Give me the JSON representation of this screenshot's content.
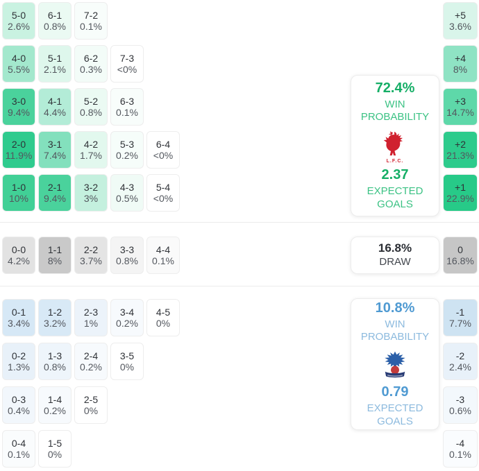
{
  "chart_data": {
    "type": "heatmap",
    "panels": {
      "home": {
        "win_pct": "72.4%",
        "win_label": "WIN PROBABILITY",
        "xg": "2.37",
        "xg_label": "EXPECTED GOALS",
        "crest_icon": "liverpool-crest",
        "crest_caption": "L.F.C."
      },
      "draw": {
        "pct": "16.8%",
        "label": "DRAW"
      },
      "away": {
        "win_pct": "10.8%",
        "win_label": "WIN PROBABILITY",
        "xg": "0.79",
        "xg_label": "EXPECTED GOALS",
        "crest_icon": "crystal-palace-crest"
      }
    },
    "grid": {
      "home_rows": [
        [
          {
            "score": "5-0",
            "pct": "2.6%",
            "bg": "#c9f2e1"
          },
          {
            "score": "6-1",
            "pct": "0.8%",
            "bg": "#ebfaf3"
          },
          {
            "score": "7-2",
            "pct": "0.1%",
            "bg": "#f8fdfb"
          }
        ],
        [
          {
            "score": "4-0",
            "pct": "5.5%",
            "bg": "#a3e8cd"
          },
          {
            "score": "5-1",
            "pct": "2.1%",
            "bg": "#def7ec"
          },
          {
            "score": "6-2",
            "pct": "0.3%",
            "bg": "#f3fcf8"
          },
          {
            "score": "7-3",
            "pct": "<0%",
            "bg": "#ffffff"
          }
        ],
        [
          {
            "score": "3-0",
            "pct": "9.4%",
            "bg": "#4ad29c"
          },
          {
            "score": "4-1",
            "pct": "4.4%",
            "bg": "#b3ecd7"
          },
          {
            "score": "5-2",
            "pct": "0.8%",
            "bg": "#ebfaf3"
          },
          {
            "score": "6-3",
            "pct": "0.1%",
            "bg": "#f8fdfb"
          }
        ],
        [
          {
            "score": "2-0",
            "pct": "11.9%",
            "bg": "#2fcb8e"
          },
          {
            "score": "3-1",
            "pct": "7.4%",
            "bg": "#83e0bd"
          },
          {
            "score": "4-2",
            "pct": "1.7%",
            "bg": "#e2f8ee"
          },
          {
            "score": "5-3",
            "pct": "0.2%",
            "bg": "#f6fdfa"
          },
          {
            "score": "6-4",
            "pct": "<0%",
            "bg": "#ffffff"
          }
        ],
        [
          {
            "score": "1-0",
            "pct": "10%",
            "bg": "#41d096"
          },
          {
            "score": "2-1",
            "pct": "9.4%",
            "bg": "#4ad29c"
          },
          {
            "score": "3-2",
            "pct": "3%",
            "bg": "#c4f0de"
          },
          {
            "score": "4-3",
            "pct": "0.5%",
            "bg": "#f0fbf6"
          },
          {
            "score": "5-4",
            "pct": "<0%",
            "bg": "#ffffff"
          }
        ]
      ],
      "draw_row": [
        {
          "score": "0-0",
          "pct": "4.2%",
          "bg": "#e2e2e2"
        },
        {
          "score": "1-1",
          "pct": "8%",
          "bg": "#c9c9c9"
        },
        {
          "score": "2-2",
          "pct": "3.7%",
          "bg": "#e4e4e4"
        },
        {
          "score": "3-3",
          "pct": "0.8%",
          "bg": "#f4f4f4"
        },
        {
          "score": "4-4",
          "pct": "0.1%",
          "bg": "#fafafa"
        }
      ],
      "away_rows": [
        [
          {
            "score": "0-1",
            "pct": "3.4%",
            "bg": "#d6e8f6"
          },
          {
            "score": "1-2",
            "pct": "3.2%",
            "bg": "#d8e9f6"
          },
          {
            "score": "2-3",
            "pct": "1%",
            "bg": "#ecf3fa"
          },
          {
            "score": "3-4",
            "pct": "0.2%",
            "bg": "#f7fafd"
          },
          {
            "score": "4-5",
            "pct": "0%",
            "bg": "#ffffff"
          }
        ],
        [
          {
            "score": "0-2",
            "pct": "1.3%",
            "bg": "#e8f1f9"
          },
          {
            "score": "1-3",
            "pct": "0.8%",
            "bg": "#eef5fb"
          },
          {
            "score": "2-4",
            "pct": "0.2%",
            "bg": "#f7fafd"
          },
          {
            "score": "3-5",
            "pct": "0%",
            "bg": "#ffffff"
          }
        ],
        [
          {
            "score": "0-3",
            "pct": "0.4%",
            "bg": "#f2f7fc"
          },
          {
            "score": "1-4",
            "pct": "0.2%",
            "bg": "#f7fafd"
          },
          {
            "score": "2-5",
            "pct": "0%",
            "bg": "#ffffff"
          }
        ],
        [
          {
            "score": "0-4",
            "pct": "0.1%",
            "bg": "#fafcfd"
          },
          {
            "score": "1-5",
            "pct": "0%",
            "bg": "#ffffff"
          }
        ]
      ]
    },
    "margins": {
      "home": [
        {
          "margin": "+5",
          "pct": "3.6%",
          "bg": "#d9f5ea"
        },
        {
          "margin": "+4",
          "pct": "8%",
          "bg": "#8fe3c4"
        },
        {
          "margin": "+3",
          "pct": "14.7%",
          "bg": "#5ed8a9"
        },
        {
          "margin": "+2",
          "pct": "21.3%",
          "bg": "#2dcb8c"
        },
        {
          "margin": "+1",
          "pct": "22.9%",
          "bg": "#27ca88"
        }
      ],
      "draw": {
        "margin": "0",
        "pct": "16.8%",
        "bg": "#c6c6c6"
      },
      "away": [
        {
          "margin": "-1",
          "pct": "7.7%",
          "bg": "#cee3f2"
        },
        {
          "margin": "-2",
          "pct": "2.4%",
          "bg": "#e8f1f9"
        },
        {
          "margin": "-3",
          "pct": "0.6%",
          "bg": "#f3f8fc"
        },
        {
          "margin": "-4",
          "pct": "0.1%",
          "bg": "#fafcfe"
        }
      ]
    },
    "colors": {
      "home_accent": "#15ae66",
      "home_accent_light": "#3cc284",
      "away_accent": "#4f9ad2",
      "away_accent_light": "#8cbade",
      "crest_red": "#d0212f",
      "crest_blue": "#2b5fa8",
      "crest_ball": "#c23b3b",
      "crest_banner": "#273a74"
    }
  }
}
